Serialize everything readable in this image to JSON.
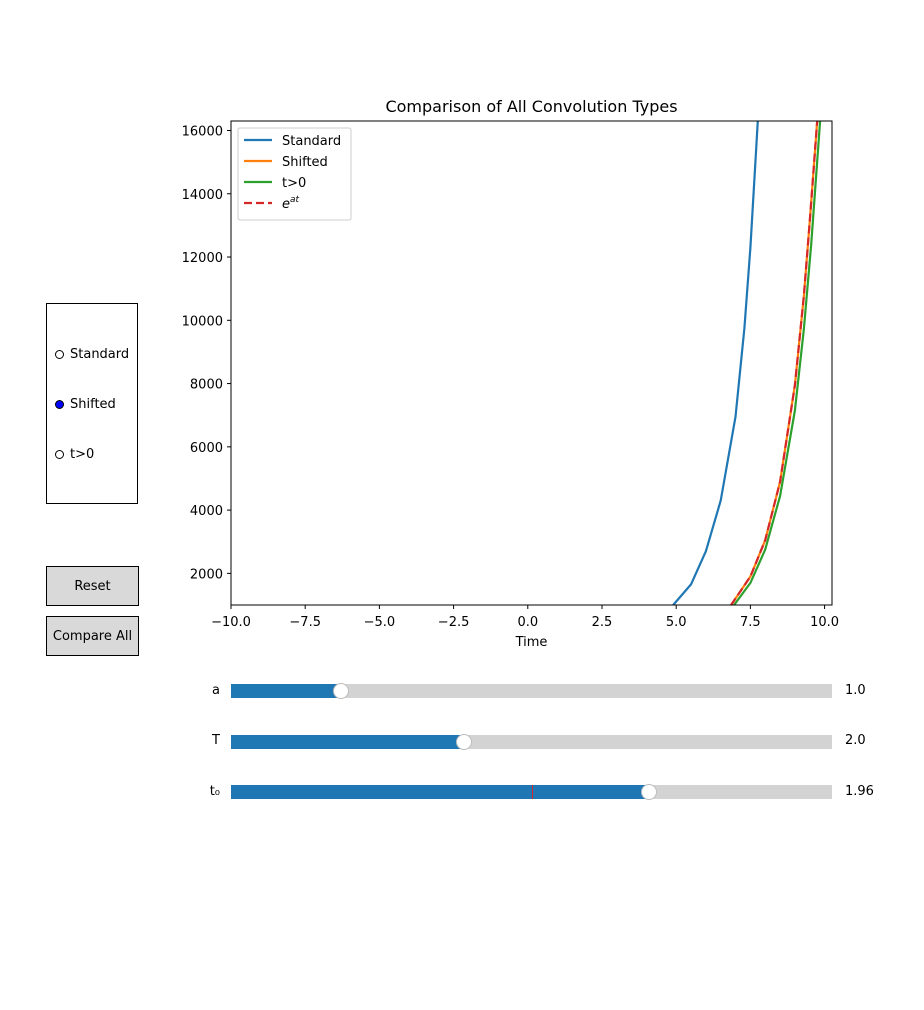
{
  "chart_data": {
    "type": "line",
    "title": "Comparison of All Convolution Types",
    "xlabel": "Time",
    "ylabel": "",
    "xlim": [
      -10.0,
      10.25
    ],
    "ylim": [
      1000,
      16300
    ],
    "xticks": [
      -10.0,
      -7.5,
      -5.0,
      -2.5,
      0.0,
      2.5,
      5.0,
      7.5,
      10.0
    ],
    "xtick_labels": [
      "−10.0",
      "−7.5",
      "−5.0",
      "−2.5",
      "0.0",
      "2.5",
      "5.0",
      "7.5",
      "10.0"
    ],
    "yticks": [
      2000,
      4000,
      6000,
      8000,
      10000,
      12000,
      14000,
      16000
    ],
    "ytick_labels": [
      "2000",
      "4000",
      "6000",
      "8000",
      "10000",
      "12000",
      "14000",
      "16000"
    ],
    "legend_position": "top-left",
    "grid": false,
    "series": [
      {
        "name": "Standard",
        "color": "#1f77b4",
        "dash": false,
        "x": [
          4.9,
          5.5,
          6.0,
          6.5,
          7.0,
          7.3,
          7.5,
          7.75
        ],
        "y": [
          1000,
          1650,
          2700,
          4300,
          6950,
          9750,
          12300,
          16300
        ]
      },
      {
        "name": "Shifted",
        "color": "#ff7f0e",
        "dash": false,
        "x": [
          6.85,
          7.5,
          8.0,
          8.5,
          9.0,
          9.3,
          9.5,
          9.75
        ],
        "y": [
          1000,
          1900,
          3050,
          4900,
          7950,
          10750,
          13100,
          16300
        ]
      },
      {
        "name": "t>0",
        "color": "#2ca02c",
        "dash": false,
        "x": [
          6.95,
          7.5,
          8.0,
          8.5,
          9.0,
          9.3,
          9.55,
          9.85
        ],
        "y": [
          1000,
          1700,
          2750,
          4450,
          7150,
          9700,
          12400,
          16300
        ]
      },
      {
        "name": "e^{at}",
        "color": "#d62728",
        "dash": true,
        "x": [
          6.85,
          7.5,
          8.0,
          8.5,
          9.0,
          9.3,
          9.5,
          9.75
        ],
        "y": [
          1000,
          1900,
          3050,
          4900,
          7950,
          10750,
          13100,
          16300
        ]
      }
    ]
  },
  "legend": {
    "standard": "Standard",
    "shifted": "Shifted",
    "tpos": "t>0",
    "exp_base": "e",
    "exp_sup": "at"
  },
  "radio": {
    "options": [
      "Standard",
      "Shifted",
      "t>0"
    ],
    "selected": "Shifted"
  },
  "buttons": {
    "reset": "Reset",
    "compare_all": "Compare All"
  },
  "sliders": [
    {
      "label": "a",
      "value": 1.0,
      "value_text": "1.0",
      "fraction": 0.1833,
      "valinit_fraction": null
    },
    {
      "label": "T",
      "value": 2.0,
      "value_text": "2.0",
      "fraction": 0.3883,
      "valinit_fraction": null
    },
    {
      "label": "t₀",
      "value": 1.96,
      "value_text": "1.96",
      "fraction": 0.6955,
      "valinit_fraction": 0.5
    }
  ],
  "colors": {
    "radio_active": "#0000ff",
    "slider_fill": "#1f77b4",
    "slider_track": "#d3d3d3",
    "button_bg": "#d9d9d9"
  }
}
